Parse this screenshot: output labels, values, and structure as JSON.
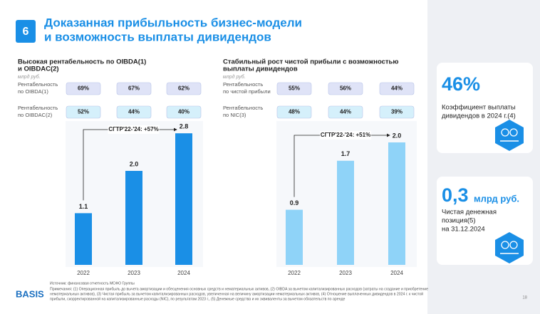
{
  "header": {
    "number": "6",
    "title_lines": [
      "Доказанная прибыльность бизнес-модели",
      "и возможность выплаты дивидендов"
    ]
  },
  "chart_data": [
    {
      "type": "bar",
      "title_lines": [
        "Высокая рентабельность по OIBDA(1)",
        "и OIBDAC(2)"
      ],
      "subtitle": "млрд руб.",
      "metric_rows": [
        {
          "label_lines": [
            "Рентабельность",
            "по OIBDA(1)"
          ],
          "color": "#dfe3f7",
          "values": [
            "69%",
            "67%",
            "62%"
          ]
        },
        {
          "label_lines": [
            "Рентабельность",
            "по OIBDAC(2)"
          ],
          "color": "#d5f0fb",
          "values": [
            "52%",
            "44%",
            "40%"
          ]
        }
      ],
      "categories": [
        "2022",
        "2023",
        "2024"
      ],
      "values": [
        1.1,
        2.0,
        2.8
      ],
      "value_labels": [
        "1.1",
        "2.0",
        "2.8"
      ],
      "color": "#1a8fe6",
      "ylim": [
        0,
        3.5
      ],
      "annotation": "CГТР'22-'24: +57%"
    },
    {
      "type": "bar",
      "title_lines": [
        "Стабильный рост чистой прибыли с возможностью",
        "выплаты дивидендов"
      ],
      "subtitle": "млрд руб.",
      "metric_rows": [
        {
          "label_lines": [
            "Рентабельность",
            "по чистой прибыли"
          ],
          "color": "#dfe3f7",
          "values": [
            "55%",
            "56%",
            "44%"
          ]
        },
        {
          "label_lines": [
            "Рентабельность",
            "по NIC(3)"
          ],
          "color": "#d5f0fb",
          "values": [
            "48%",
            "44%",
            "39%"
          ]
        }
      ],
      "categories": [
        "2022",
        "2023",
        "2024"
      ],
      "values": [
        0.9,
        1.7,
        2.0
      ],
      "value_labels": [
        "0.9",
        "1.7",
        "2.0"
      ],
      "color": "#8fd3f8",
      "ylim": [
        0,
        2.5
      ],
      "annotation": "CГТР'22-'24: +51%"
    }
  ],
  "kpis": [
    {
      "value": "46%",
      "lines": [
        "Коэффициент выплаты",
        "дивидендов в 2024 г.(4)"
      ]
    },
    {
      "value": "0,3",
      "unit": "млрд руб.",
      "lines": [
        "Чистая денежная",
        "позиция(5)",
        "на 31.12.2024"
      ]
    }
  ],
  "footer": {
    "logo": "BASIS",
    "page": "18",
    "source": "Источник: финансовая отчетность МСФО Группы",
    "notes": [
      "Примечания: (1) Операционная прибыль до вычета амортизации и обесценения основных средств и нематериальных активов, (2) OIBDA за вычетом капитализированных расходов (затраты на создание и приобретение",
      "нематериальных активов), (3) Чистая прибыль за вычетом капитализированных расходов, увеличенная на величину амортизации нематериальных активов, (4) Отношение выплаченных дивидендов в 2024 г. к чистой",
      "прибыли, скорректированной на капитализированные расходы (NIC), по результатам 2023 г., (5) Денежные средства и их эквиваленты за вычетом обязательств по аренде"
    ]
  }
}
